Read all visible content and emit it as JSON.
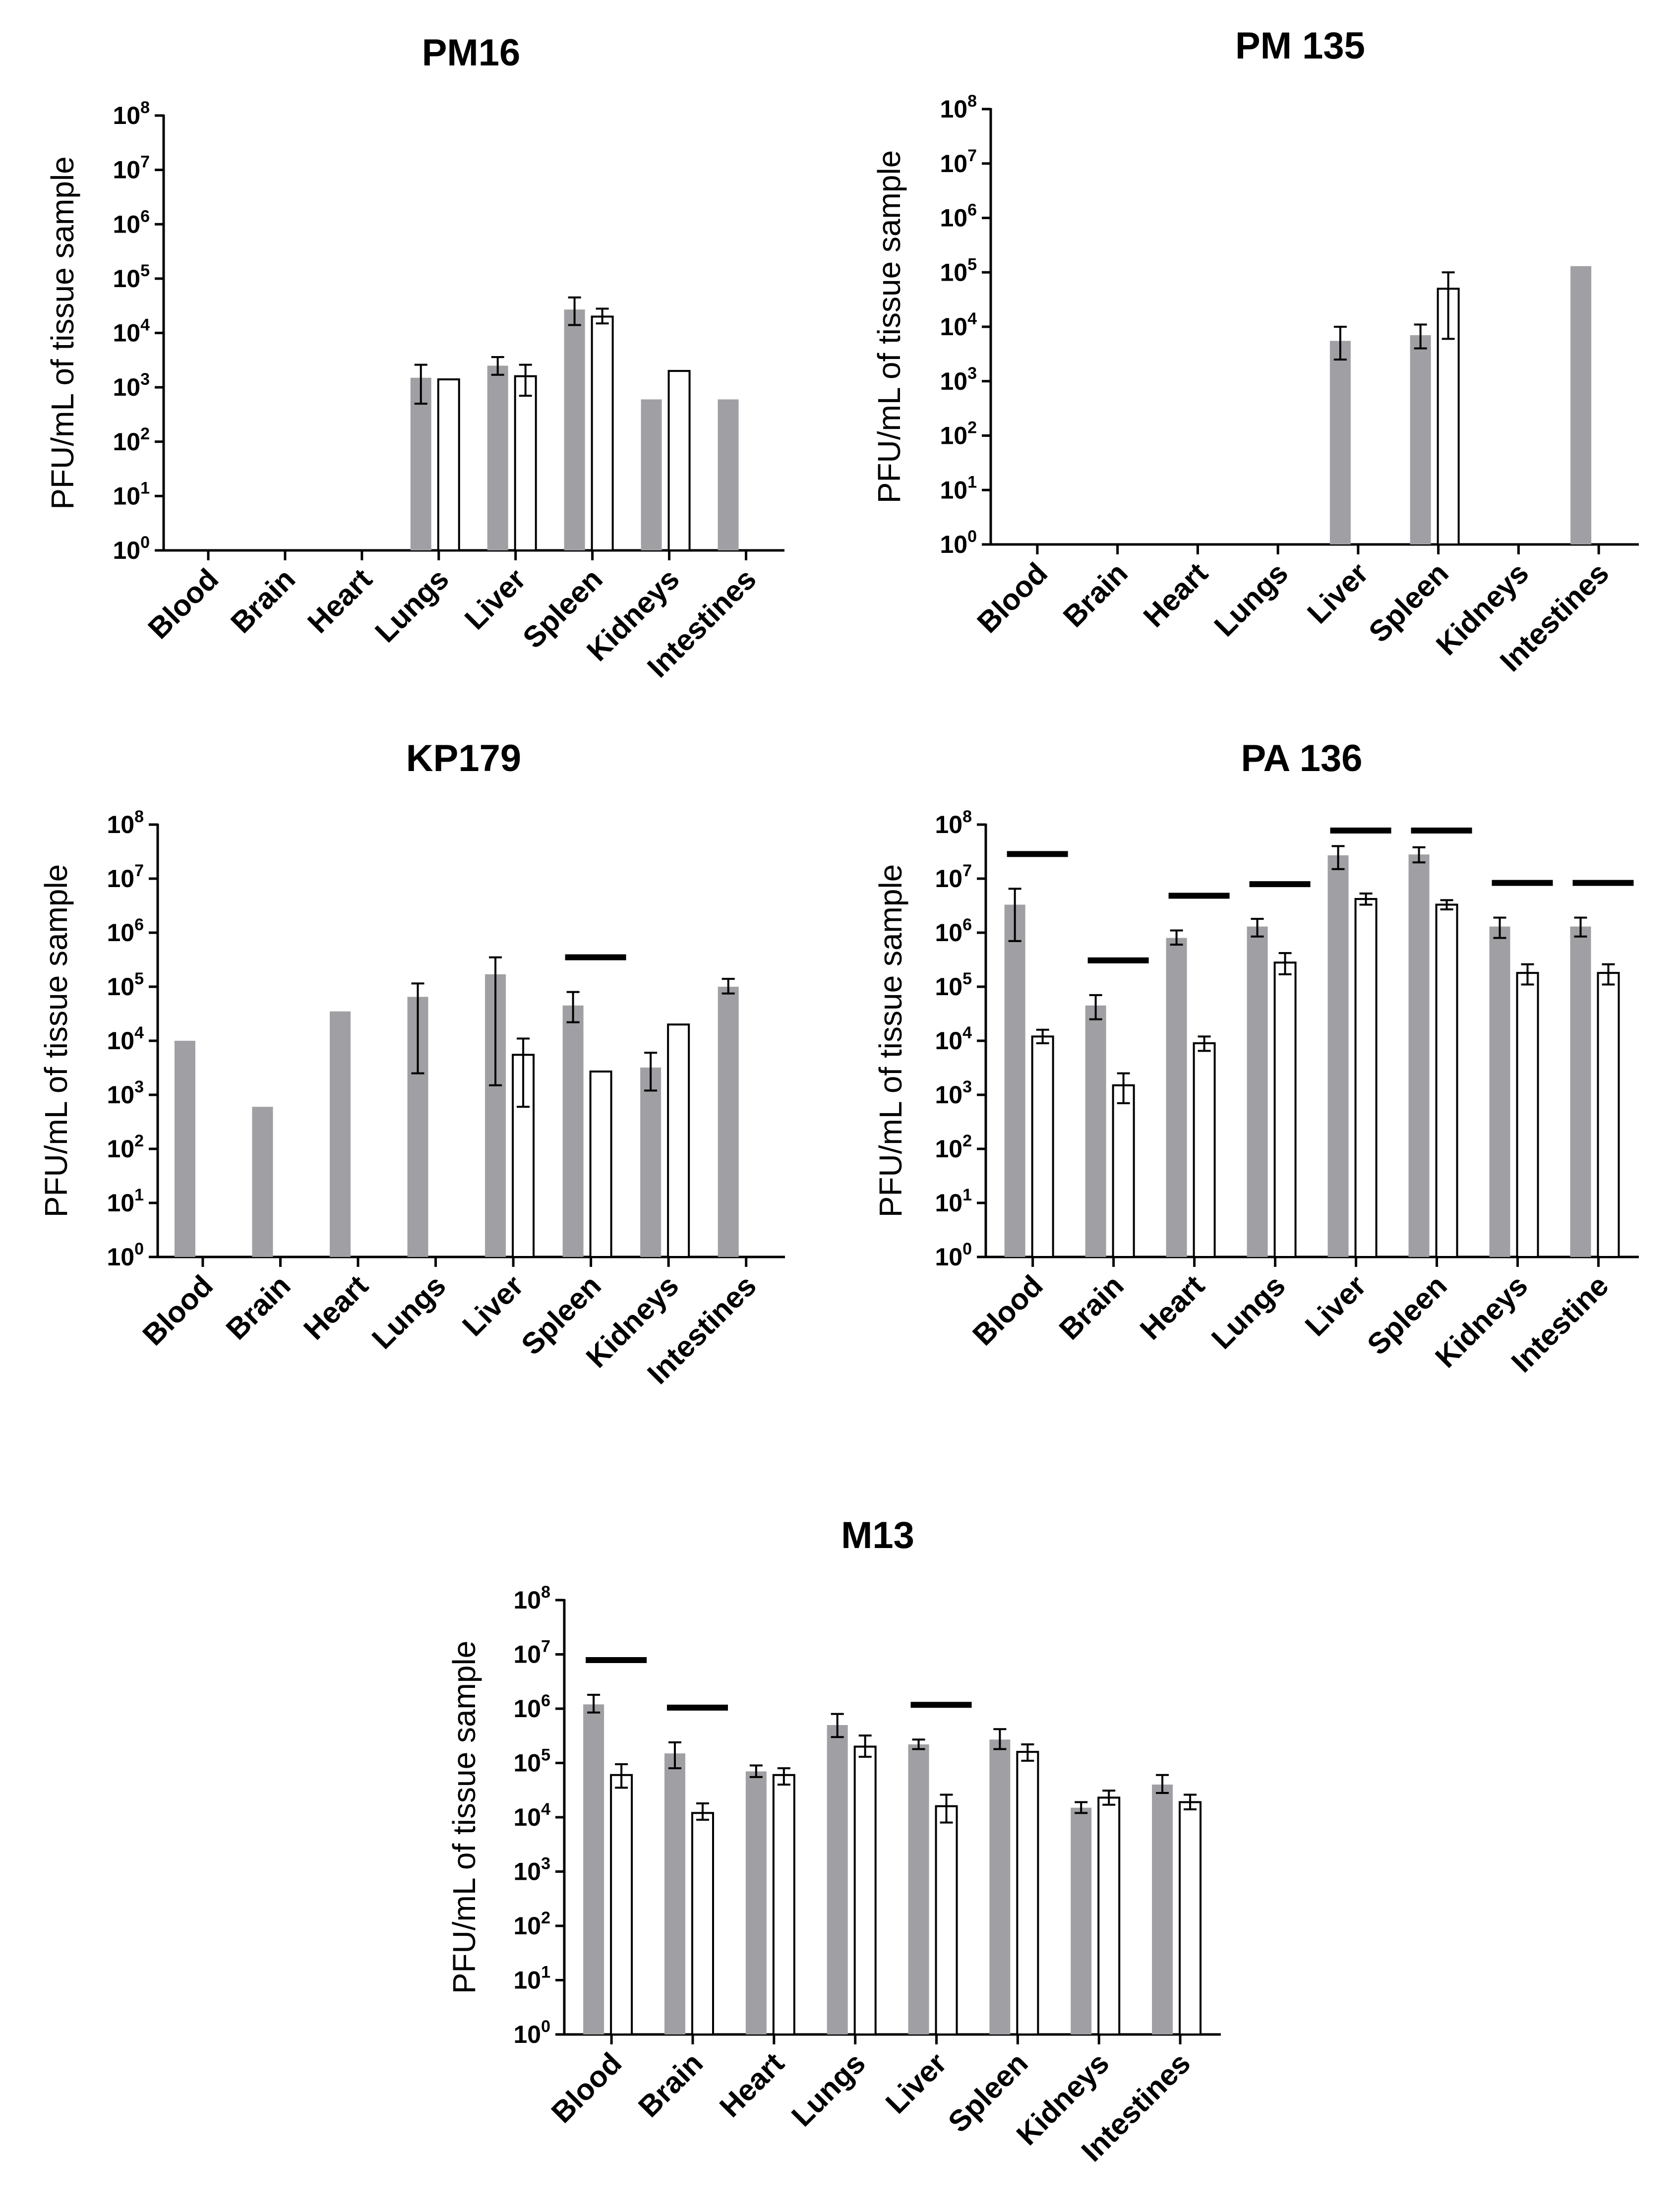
{
  "chart_data": [
    {
      "type": "bar",
      "title": "PM16",
      "ylabel": "PFU/mL of tissue sample",
      "xlabel": "",
      "yscale": "log10",
      "ylim": [
        1,
        100000000
      ],
      "ytick_base": "10",
      "ytick_exponents": [
        "0",
        "1",
        "2",
        "3",
        "4",
        "5",
        "6",
        "7",
        "8"
      ],
      "categories": [
        "Blood",
        "Brain",
        "Heart",
        "Lungs",
        "Liver",
        "Spleen",
        "Kidneys",
        "Intestines"
      ],
      "series": [
        {
          "name": "grey",
          "color": "#a0a0a4",
          "values": [
            null,
            null,
            null,
            1500,
            2500,
            27000,
            600,
            600
          ],
          "err_low": [
            null,
            null,
            null,
            500,
            1700,
            14000,
            null,
            null
          ],
          "err_high": [
            null,
            null,
            null,
            2600,
            3600,
            45000,
            null,
            null
          ]
        },
        {
          "name": "white",
          "color": "#ffffff",
          "values": [
            null,
            null,
            null,
            1400,
            1600,
            20000,
            2000,
            null
          ],
          "err_low": [
            null,
            null,
            null,
            null,
            700,
            15000,
            null,
            null
          ],
          "err_high": [
            null,
            null,
            null,
            null,
            2600,
            28000,
            null,
            null
          ]
        }
      ],
      "significance_bars": []
    },
    {
      "type": "bar",
      "title": "PM 135",
      "ylabel": "PFU/mL of tissue sample",
      "xlabel": "",
      "yscale": "log10",
      "ylim": [
        1,
        100000000
      ],
      "ytick_base": "10",
      "ytick_exponents": [
        "0",
        "1",
        "2",
        "3",
        "4",
        "5",
        "6",
        "7",
        "8"
      ],
      "categories": [
        "Blood",
        "Brain",
        "Heart",
        "Lungs",
        "Liver",
        "Spleen",
        "Kidneys",
        "Intestines"
      ],
      "series": [
        {
          "name": "grey",
          "color": "#a0a0a4",
          "values": [
            null,
            null,
            null,
            null,
            5500,
            7000,
            null,
            130000
          ],
          "err_low": [
            null,
            null,
            null,
            null,
            2500,
            4000,
            null,
            null
          ],
          "err_high": [
            null,
            null,
            null,
            null,
            10000,
            11000,
            null,
            null
          ]
        },
        {
          "name": "white",
          "color": "#ffffff",
          "values": [
            null,
            null,
            null,
            null,
            null,
            50000,
            null,
            null
          ],
          "err_low": [
            null,
            null,
            null,
            null,
            null,
            6000,
            null,
            null
          ],
          "err_high": [
            null,
            null,
            null,
            null,
            null,
            100000,
            null,
            null
          ]
        }
      ],
      "significance_bars": []
    },
    {
      "type": "bar",
      "title": "KP179",
      "ylabel": "PFU/mL of tissue sample",
      "xlabel": "",
      "yscale": "log10",
      "ylim": [
        1,
        100000000
      ],
      "ytick_base": "10",
      "ytick_exponents": [
        "0",
        "1",
        "2",
        "3",
        "4",
        "5",
        "6",
        "7",
        "8"
      ],
      "categories": [
        "Blood",
        "Brain",
        "Heart",
        "Lungs",
        "Liver",
        "Spleen",
        "Kidneys",
        "Intestines"
      ],
      "series": [
        {
          "name": "grey",
          "color": "#a0a0a4",
          "values": [
            10000,
            600,
            35000,
            65000,
            170000,
            45000,
            3200,
            100000
          ],
          "err_low": [
            null,
            null,
            null,
            2500,
            1500,
            22000,
            1200,
            75000
          ],
          "err_high": [
            null,
            null,
            null,
            115000,
            350000,
            80000,
            6000,
            140000
          ]
        },
        {
          "name": "white",
          "color": "#ffffff",
          "values": [
            null,
            null,
            null,
            null,
            5500,
            2700,
            20000,
            null
          ],
          "err_low": [
            null,
            null,
            null,
            null,
            600,
            null,
            null,
            null
          ],
          "err_high": [
            null,
            null,
            null,
            null,
            11000,
            null,
            null,
            null
          ]
        }
      ],
      "significance_bars": [
        "Spleen"
      ]
    },
    {
      "type": "bar",
      "title": "PA 136",
      "ylabel": "PFU/mL of tissue sample",
      "xlabel": "",
      "yscale": "log10",
      "ylim": [
        1,
        100000000
      ],
      "ytick_base": "10",
      "ytick_exponents": [
        "0",
        "1",
        "2",
        "3",
        "4",
        "5",
        "6",
        "7",
        "8"
      ],
      "categories": [
        "Blood",
        "Brain",
        "Heart",
        "Lungs",
        "Liver",
        "Spleen",
        "Kidneys",
        "Intestine"
      ],
      "series": [
        {
          "name": "grey",
          "color": "#a0a0a4",
          "values": [
            3300000,
            45000,
            800000,
            1300000,
            27000000,
            28000000,
            1300000,
            1300000
          ],
          "err_low": [
            700000,
            25000,
            600000,
            850000,
            15000000,
            20000000,
            800000,
            850000
          ],
          "err_high": [
            6500000,
            70000,
            1100000,
            1800000,
            40000000,
            38000000,
            1900000,
            1900000
          ]
        },
        {
          "name": "white",
          "color": "#ffffff",
          "values": [
            12000,
            1500,
            9000,
            280000,
            4200000,
            3300000,
            180000,
            180000
          ],
          "err_low": [
            9000,
            700,
            6500,
            170000,
            3300000,
            2700000,
            110000,
            110000
          ],
          "err_high": [
            16000,
            2500,
            12000,
            420000,
            5300000,
            4000000,
            260000,
            260000
          ]
        }
      ],
      "significance_bars": [
        "Blood",
        "Brain",
        "Heart",
        "Lungs",
        "Liver",
        "Spleen",
        "Kidneys",
        "Intestine"
      ]
    },
    {
      "type": "bar",
      "title": "M13",
      "ylabel": "PFU/mL of tissue sample",
      "xlabel": "",
      "yscale": "log10",
      "ylim": [
        1,
        100000000
      ],
      "ytick_base": "10",
      "ytick_exponents": [
        "0",
        "1",
        "2",
        "3",
        "4",
        "5",
        "6",
        "7",
        "8"
      ],
      "categories": [
        "Blood",
        "Brain",
        "Heart",
        "Lungs",
        "Liver",
        "Spleen",
        "Kidneys",
        "Intestines"
      ],
      "series": [
        {
          "name": "grey",
          "color": "#a0a0a4",
          "values": [
            1200000,
            150000,
            70000,
            500000,
            220000,
            270000,
            15000,
            40000
          ],
          "err_low": [
            850000,
            80000,
            55000,
            300000,
            180000,
            180000,
            12000,
            28000
          ],
          "err_high": [
            1800000,
            240000,
            90000,
            800000,
            270000,
            420000,
            19000,
            60000
          ]
        },
        {
          "name": "white",
          "color": "#ffffff",
          "values": [
            60000,
            12000,
            60000,
            200000,
            16000,
            160000,
            23000,
            19000
          ],
          "err_low": [
            35000,
            9000,
            40000,
            130000,
            8000,
            110000,
            17000,
            14000
          ],
          "err_high": [
            95000,
            18000,
            80000,
            320000,
            26000,
            220000,
            31000,
            26000
          ]
        }
      ],
      "significance_bars": [
        "Blood",
        "Brain",
        "Liver"
      ]
    }
  ]
}
